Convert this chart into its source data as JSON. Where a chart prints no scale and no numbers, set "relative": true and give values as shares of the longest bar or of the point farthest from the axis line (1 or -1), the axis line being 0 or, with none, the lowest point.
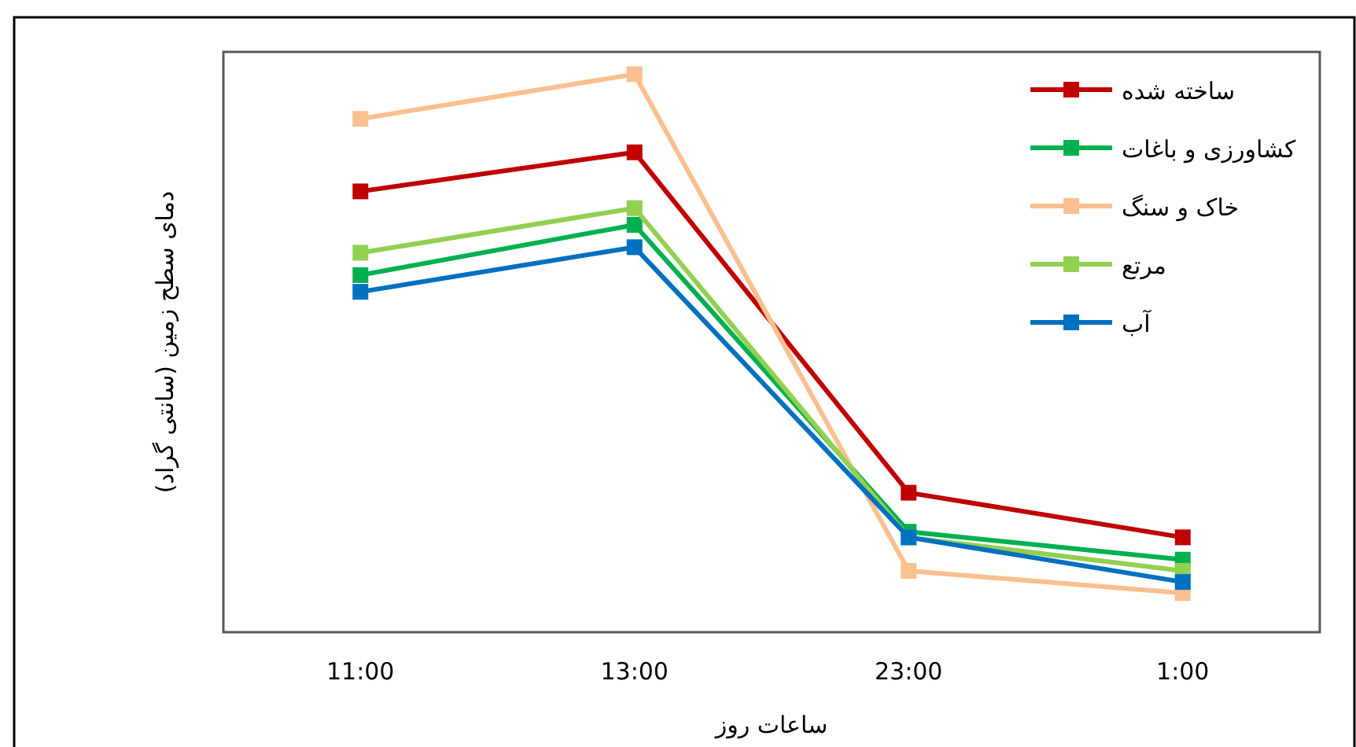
{
  "chart_data": {
    "type": "line",
    "relative": true,
    "xlabel": "ساعات روز",
    "ylabel": "دمای سطح زمین (سانتی گراد)",
    "categories": [
      "11:00",
      "13:00",
      "23:00",
      "1:00"
    ],
    "marker": "square",
    "line_style": "solid",
    "legend": "top right",
    "series": [
      {
        "name": "ساخته شده",
        "color": "#c00000",
        "values": [
          0.79,
          0.86,
          0.25,
          0.17
        ]
      },
      {
        "name": "کشاورزی و باغات",
        "color": "#00b050",
        "values": [
          0.64,
          0.73,
          0.18,
          0.13
        ]
      },
      {
        "name": "خاک و سنگ",
        "color": "#fac090",
        "values": [
          0.92,
          1,
          0.11,
          0.07
        ]
      },
      {
        "name": "مرتع",
        "color": "#92d050",
        "values": [
          0.68,
          0.76,
          0.17,
          0.11
        ]
      },
      {
        "name": "آب",
        "color": "#0070c0",
        "values": [
          0.61,
          0.69,
          0.17,
          0.09
        ]
      }
    ]
  }
}
